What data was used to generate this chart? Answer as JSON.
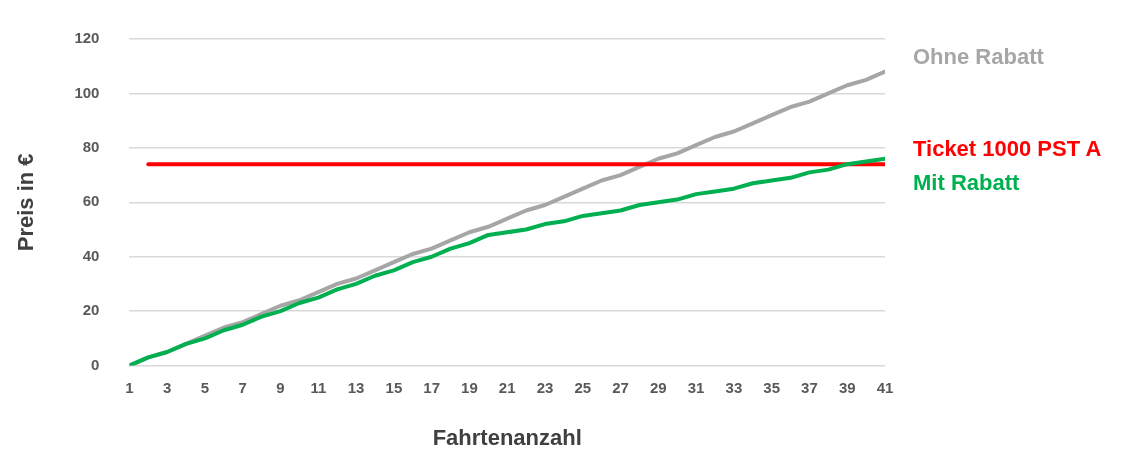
{
  "chart_data": {
    "type": "line",
    "xlabel": "Fahrtenanzahl",
    "ylabel": "Preis in €",
    "x": [
      1,
      2,
      3,
      4,
      5,
      6,
      7,
      8,
      9,
      10,
      11,
      12,
      13,
      14,
      15,
      16,
      17,
      18,
      19,
      20,
      21,
      22,
      23,
      24,
      25,
      26,
      27,
      28,
      29,
      30,
      31,
      32,
      33,
      34,
      35,
      36,
      37,
      38,
      39,
      40,
      41
    ],
    "xlim": [
      1,
      41
    ],
    "xticks": [
      1,
      3,
      5,
      7,
      9,
      11,
      13,
      15,
      17,
      19,
      21,
      23,
      25,
      27,
      29,
      31,
      33,
      35,
      37,
      39,
      41
    ],
    "series": [
      {
        "name": "Ohne Rabatt",
        "color": "#a6a6a6",
        "values": [
          0,
          3,
          5,
          8,
          11,
          14,
          16,
          19,
          22,
          24,
          27,
          30,
          32,
          35,
          38,
          41,
          43,
          46,
          49,
          51,
          54,
          57,
          59,
          62,
          65,
          68,
          70,
          73,
          76,
          78,
          81,
          84,
          86,
          89,
          92,
          95,
          97,
          100,
          103,
          105,
          108
        ]
      },
      {
        "name": "Ticket 1000 PST A",
        "color": "#ff0000",
        "values": [
          null,
          74,
          74,
          74,
          74,
          74,
          74,
          74,
          74,
          74,
          74,
          74,
          74,
          74,
          74,
          74,
          74,
          74,
          74,
          74,
          74,
          74,
          74,
          74,
          74,
          74,
          74,
          74,
          74,
          74,
          74,
          74,
          74,
          74,
          74,
          74,
          74,
          74,
          74,
          74,
          74
        ]
      },
      {
        "name": "Mit Rabatt",
        "color": "#00b050",
        "values": [
          0,
          3,
          5,
          8,
          10,
          13,
          15,
          18,
          20,
          23,
          25,
          28,
          30,
          33,
          35,
          38,
          40,
          43,
          45,
          48,
          49,
          50,
          52,
          53,
          55,
          56,
          57,
          59,
          60,
          61,
          63,
          64,
          65,
          67,
          68,
          69,
          71,
          72,
          74,
          75,
          76
        ]
      }
    ],
    "ylim": [
      0,
      120
    ],
    "yticks": [
      0,
      20,
      40,
      60,
      80,
      100,
      120
    ],
    "grid": "y",
    "legend": false,
    "marker": "none",
    "line_style": "solid"
  }
}
